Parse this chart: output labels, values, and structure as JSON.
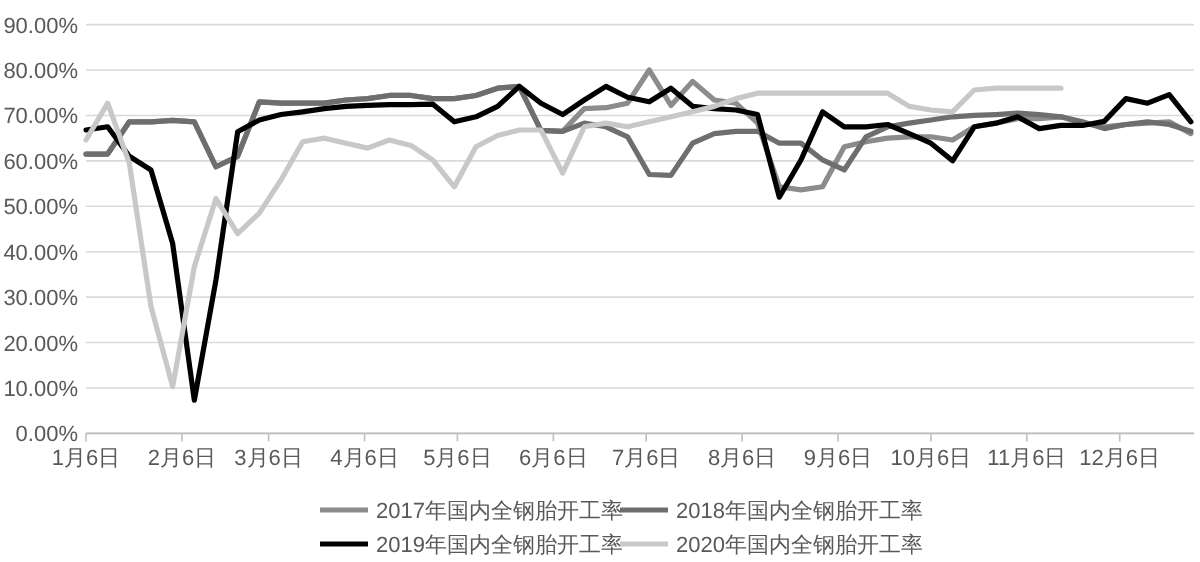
{
  "chart_data": {
    "type": "line",
    "x": [
      "--01-06",
      "--01-13",
      "--01-20",
      "--01-27",
      "--02-03",
      "--02-10",
      "--02-17",
      "--02-24",
      "--03-03",
      "--03-10",
      "--03-17",
      "--03-24",
      "--03-31",
      "--04-07",
      "--04-14",
      "--04-21",
      "--04-28",
      "--05-05",
      "--05-12",
      "--05-19",
      "--05-26",
      "--06-02",
      "--06-09",
      "--06-16",
      "--06-23",
      "--06-30",
      "--07-07",
      "--07-14",
      "--07-21",
      "--07-28",
      "--08-04",
      "--08-11",
      "--08-18",
      "--08-25",
      "--09-01",
      "--09-08",
      "--09-15",
      "--09-22",
      "--09-29",
      "--10-06",
      "--10-13",
      "--10-20",
      "--10-27",
      "--11-03",
      "--11-10",
      "--11-17",
      "--11-24",
      "--12-01",
      "--12-08",
      "--12-15",
      "--12-22",
      "--12-29"
    ],
    "series": [
      {
        "name": "2017年国内全钢胎开工率",
        "color": "#8c8c8c",
        "values": [
          61.5,
          61.5,
          68.6,
          68.6,
          68.9,
          68.6,
          58.7,
          61,
          73,
          72.7,
          72.7,
          72.7,
          73.4,
          73.7,
          74.4,
          74.4,
          73.7,
          73.7,
          74.4,
          76,
          76.4,
          66.7,
          66.5,
          71.5,
          71.7,
          72.7,
          80,
          72.2,
          77.5,
          73.4,
          72.7,
          68.3,
          54.3,
          53.6,
          54.3,
          63.1,
          64.2,
          65,
          65.3,
          65.3,
          64.6,
          67.5,
          68.3,
          69.3,
          69.3,
          69.7,
          68.3,
          67.5,
          68,
          68.3,
          68.6,
          66
        ]
      },
      {
        "name": "2018年国内全钢胎开工率",
        "color": "#6e6e6e",
        "values": [
          61.5,
          61.5,
          68.6,
          68.6,
          68.9,
          68.6,
          58.7,
          61,
          73,
          72.7,
          72.7,
          72.7,
          73.4,
          73.7,
          74.4,
          74.4,
          73.7,
          73.7,
          74.4,
          76,
          76.4,
          66.7,
          66.5,
          68.3,
          67.5,
          65.3,
          57,
          56.8,
          63.9,
          66,
          66.5,
          66.5,
          63.9,
          63.9,
          60.2,
          58,
          65.3,
          67.5,
          68.3,
          69,
          69.7,
          70,
          70.2,
          70.5,
          70.2,
          69.7,
          68.6,
          67.1,
          68,
          68.6,
          68,
          66.5
        ]
      },
      {
        "name": "2019年国内全钢胎开工率",
        "color": "#000000",
        "values": [
          66.8,
          67.5,
          61,
          58,
          41.8,
          7.3,
          33.8,
          66.4,
          69,
          70.2,
          70.8,
          71.5,
          72,
          72.2,
          72.4,
          72.4,
          72.5,
          68.6,
          69.7,
          72,
          76.4,
          72.7,
          70.2,
          73.4,
          76.4,
          74,
          73,
          76,
          72,
          71.5,
          71.2,
          70.2,
          52,
          60.2,
          70.8,
          67.5,
          67.5,
          68,
          66,
          63.9,
          60,
          67.5,
          68.3,
          69.7,
          67.1,
          67.8,
          67.8,
          68.7,
          73.7,
          72.7,
          74.6,
          68.6
        ]
      },
      {
        "name": "2020年国内全钢胎开工率",
        "color": "#c8c8c8",
        "values": [
          64.6,
          72.7,
          59.5,
          27.9,
          10.3,
          36.7,
          51.7,
          44,
          48.5,
          55.8,
          64.2,
          65,
          63.9,
          62.8,
          64.6,
          63.4,
          60.2,
          54.3,
          63.1,
          65.6,
          66.8,
          66.8,
          57.3,
          67.5,
          68.3,
          67.5,
          68.6,
          69.7,
          70.8,
          72,
          73.7,
          74.9,
          74.9,
          74.9,
          74.9,
          74.9,
          74.9,
          74.9,
          72,
          71.2,
          70.8,
          75.6,
          76,
          76,
          76,
          76,
          null,
          null,
          null,
          null,
          null,
          null
        ]
      }
    ],
    "xlim": [
      "--01-06",
      "--12-30"
    ],
    "xticks": [
      {
        "value": "--01-06",
        "label": "1月6日"
      },
      {
        "value": "--02-06",
        "label": "2月6日"
      },
      {
        "value": "--03-06",
        "label": "3月6日"
      },
      {
        "value": "--04-06",
        "label": "4月6日"
      },
      {
        "value": "--05-06",
        "label": "5月6日"
      },
      {
        "value": "--06-06",
        "label": "6月6日"
      },
      {
        "value": "--07-06",
        "label": "7月6日"
      },
      {
        "value": "--08-06",
        "label": "8月6日"
      },
      {
        "value": "--09-06",
        "label": "9月6日"
      },
      {
        "value": "--10-06",
        "label": "10月6日"
      },
      {
        "value": "--11-06",
        "label": "11月6日"
      },
      {
        "value": "--12-06",
        "label": "12月6日"
      }
    ],
    "ylim": [
      0,
      90
    ],
    "yticks": [
      {
        "value": 0,
        "label": "0.00%"
      },
      {
        "value": 10,
        "label": "10.00%"
      },
      {
        "value": 20,
        "label": "20.00%"
      },
      {
        "value": 30,
        "label": "30.00%"
      },
      {
        "value": 40,
        "label": "40.00%"
      },
      {
        "value": 50,
        "label": "50.00%"
      },
      {
        "value": 60,
        "label": "60.00%"
      },
      {
        "value": 70,
        "label": "70.00%"
      },
      {
        "value": 80,
        "label": "80.00%"
      },
      {
        "value": 90,
        "label": "90.00%"
      }
    ],
    "grid": "y",
    "legend": "bottom"
  }
}
